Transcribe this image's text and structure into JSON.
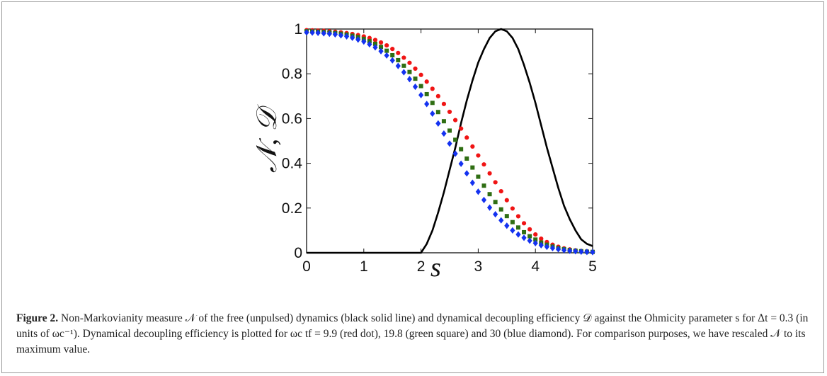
{
  "chart_data": {
    "type": "line",
    "xlabel": "s",
    "ylabel": "𝒩, 𝒟",
    "xlim": [
      0,
      5
    ],
    "ylim": [
      0,
      1
    ],
    "xticks": [
      "0",
      "1",
      "2",
      "3",
      "4",
      "5"
    ],
    "yticks": [
      "0",
      "0.2",
      "0.4",
      "0.6",
      "0.8",
      "1"
    ],
    "grid": false,
    "colors": {
      "black": "#000000",
      "red": "#f01414",
      "green": "#2f6e13",
      "blue": "#1432f0"
    },
    "x": [
      0,
      0.1,
      0.2,
      0.3,
      0.4,
      0.5,
      0.6,
      0.7,
      0.8,
      0.9,
      1.0,
      1.1,
      1.2,
      1.3,
      1.4,
      1.5,
      1.6,
      1.7,
      1.8,
      1.9,
      2.0,
      2.1,
      2.2,
      2.3,
      2.4,
      2.5,
      2.6,
      2.7,
      2.8,
      2.9,
      3.0,
      3.1,
      3.2,
      3.3,
      3.4,
      3.5,
      3.6,
      3.7,
      3.8,
      3.9,
      4.0,
      4.1,
      4.2,
      4.3,
      4.4,
      4.5,
      4.6,
      4.7,
      4.8,
      4.9,
      5.0
    ],
    "series": [
      {
        "style": "solid-line",
        "color": "#000000",
        "values": [
          0,
          0,
          0,
          0,
          0,
          0,
          0,
          0,
          0,
          0,
          0,
          0,
          0,
          0,
          0,
          0,
          0,
          0,
          0,
          0,
          0,
          0.04,
          0.1,
          0.18,
          0.27,
          0.37,
          0.47,
          0.58,
          0.68,
          0.77,
          0.85,
          0.91,
          0.96,
          0.99,
          1.0,
          0.99,
          0.96,
          0.91,
          0.84,
          0.76,
          0.67,
          0.57,
          0.47,
          0.38,
          0.29,
          0.21,
          0.15,
          0.1,
          0.06,
          0.04,
          0.03
        ]
      },
      {
        "style": "dot",
        "color": "#f01414",
        "values": [
          0.995,
          0.994,
          0.993,
          0.992,
          0.99,
          0.988,
          0.985,
          0.982,
          0.978,
          0.973,
          0.967,
          0.96,
          0.951,
          0.94,
          0.927,
          0.911,
          0.893,
          0.872,
          0.849,
          0.823,
          0.795,
          0.765,
          0.733,
          0.7,
          0.665,
          0.63,
          0.593,
          0.555,
          0.515,
          0.475,
          0.435,
          0.395,
          0.355,
          0.315,
          0.275,
          0.235,
          0.198,
          0.163,
          0.132,
          0.105,
          0.082,
          0.063,
          0.048,
          0.036,
          0.027,
          0.02,
          0.015,
          0.011,
          0.008,
          0.006,
          0.005
        ]
      },
      {
        "style": "square",
        "color": "#2f6e13",
        "values": [
          0.99,
          0.989,
          0.988,
          0.987,
          0.985,
          0.982,
          0.979,
          0.975,
          0.97,
          0.964,
          0.956,
          0.946,
          0.934,
          0.92,
          0.903,
          0.883,
          0.861,
          0.836,
          0.808,
          0.778,
          0.745,
          0.709,
          0.67,
          0.629,
          0.588,
          0.546,
          0.505,
          0.463,
          0.421,
          0.381,
          0.34,
          0.3,
          0.262,
          0.227,
          0.194,
          0.164,
          0.137,
          0.113,
          0.092,
          0.074,
          0.059,
          0.046,
          0.036,
          0.028,
          0.021,
          0.016,
          0.012,
          0.009,
          0.007,
          0.005,
          0.004
        ]
      },
      {
        "style": "diamond",
        "color": "#1432f0",
        "values": [
          0.985,
          0.984,
          0.983,
          0.981,
          0.979,
          0.976,
          0.972,
          0.967,
          0.961,
          0.953,
          0.944,
          0.932,
          0.918,
          0.901,
          0.882,
          0.86,
          0.835,
          0.807,
          0.776,
          0.742,
          0.705,
          0.665,
          0.622,
          0.578,
          0.533,
          0.488,
          0.443,
          0.398,
          0.355,
          0.313,
          0.273,
          0.236,
          0.202,
          0.172,
          0.145,
          0.121,
          0.1,
          0.082,
          0.067,
          0.054,
          0.043,
          0.034,
          0.027,
          0.021,
          0.016,
          0.012,
          0.009,
          0.007,
          0.005,
          0.004,
          0.003
        ]
      }
    ]
  },
  "caption": {
    "label": "Figure 2.",
    "text": "Non-Markovianity measure 𝒩 of the free (unpulsed) dynamics (black solid line) and dynamical decoupling efficiency 𝒟 against the Ohmicity parameter s for Δt = 0.3 (in units of ωc⁻¹). Dynamical decoupling efficiency is plotted for ωc tf = 9.9 (red dot), 19.8 (green square) and 30 (blue diamond). For comparison purposes, we have rescaled 𝒩 to its maximum value."
  }
}
